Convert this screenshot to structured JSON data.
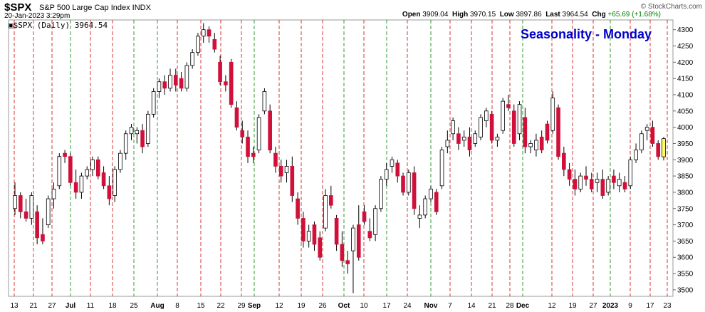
{
  "header": {
    "symbol": "$SPX",
    "name": "S&P 500 Large Cap Index  INDX",
    "datetime": "20-Jan-2023 3:29pm",
    "open_label": "Open",
    "open": "3909.04",
    "high_label": "High",
    "high": "3970.15",
    "low_label": "Low",
    "low": "3897.86",
    "last_label": "Last",
    "last": "3964.54",
    "chg_label": "Chg",
    "chg": "+65.69 (+1.68%)",
    "brand": "© StockCharts.com"
  },
  "legend": "$SPX (Daily) 3964.54",
  "annotation": "Seasonality - Monday",
  "colors": {
    "up_fill": "#ffffff",
    "down_fill": "#d0103a",
    "outline": "#000000",
    "last_bar": "#ffff66",
    "red_line": "#d00000",
    "green_line": "#008000"
  },
  "chart_data": {
    "type": "candlestick",
    "y_axis": {
      "range": [
        3480,
        4330
      ],
      "ticks": [
        3500,
        3550,
        3600,
        3650,
        3700,
        3750,
        3800,
        3850,
        3900,
        3950,
        4000,
        4050,
        4100,
        4150,
        4200,
        4250,
        4300
      ],
      "position": "right"
    },
    "x_tick_labels": [
      {
        "label": "13",
        "bold": false
      },
      {
        "label": "21",
        "bold": false
      },
      {
        "label": "27",
        "bold": false
      },
      {
        "label": "Jul",
        "bold": true
      },
      {
        "label": "11",
        "bold": false
      },
      {
        "label": "18",
        "bold": false
      },
      {
        "label": "25",
        "bold": false
      },
      {
        "label": "Aug",
        "bold": true
      },
      {
        "label": "8",
        "bold": false
      },
      {
        "label": "15",
        "bold": false
      },
      {
        "label": "22",
        "bold": false
      },
      {
        "label": "29",
        "bold": false
      },
      {
        "label": "Sep",
        "bold": true
      },
      {
        "label": "12",
        "bold": false
      },
      {
        "label": "19",
        "bold": false
      },
      {
        "label": "26",
        "bold": false
      },
      {
        "label": "Oct",
        "bold": true
      },
      {
        "label": "10",
        "bold": false
      },
      {
        "label": "17",
        "bold": false
      },
      {
        "label": "24",
        "bold": false
      },
      {
        "label": "Nov",
        "bold": true
      },
      {
        "label": "7",
        "bold": false
      },
      {
        "label": "14",
        "bold": false
      },
      {
        "label": "21",
        "bold": false
      },
      {
        "label": "28",
        "bold": false
      },
      {
        "label": "Dec",
        "bold": true
      },
      {
        "label": "12",
        "bold": false
      },
      {
        "label": "19",
        "bold": false
      },
      {
        "label": "27",
        "bold": false
      },
      {
        "label": "2023",
        "bold": true
      },
      {
        "label": "9",
        "bold": false
      },
      {
        "label": "17",
        "bold": false
      },
      {
        "label": "23",
        "bold": false
      }
    ],
    "vertical_lines": {
      "red_dashed": "Monday of each week",
      "green_dashed": "first trading day of month"
    },
    "candles": [
      [
        3750,
        3830,
        3730,
        3790
      ],
      [
        3790,
        3800,
        3720,
        3740
      ],
      [
        3740,
        3780,
        3710,
        3720
      ],
      [
        3720,
        3800,
        3700,
        3790
      ],
      [
        3740,
        3760,
        3640,
        3660
      ],
      [
        3670,
        3720,
        3640,
        3650
      ],
      [
        3700,
        3790,
        3690,
        3780
      ],
      [
        3780,
        3830,
        3750,
        3810
      ],
      [
        3820,
        3920,
        3810,
        3910
      ],
      [
        3920,
        3930,
        3890,
        3910
      ],
      [
        3910,
        3920,
        3820,
        3830
      ],
      [
        3830,
        3870,
        3780,
        3800
      ],
      [
        3800,
        3860,
        3780,
        3850
      ],
      [
        3850,
        3880,
        3840,
        3870
      ],
      [
        3870,
        3910,
        3850,
        3900
      ],
      [
        3900,
        3910,
        3840,
        3850
      ],
      [
        3860,
        3880,
        3810,
        3820
      ],
      [
        3820,
        3850,
        3760,
        3780
      ],
      [
        3790,
        3880,
        3770,
        3870
      ],
      [
        3870,
        3930,
        3860,
        3920
      ],
      [
        3920,
        3990,
        3900,
        3980
      ],
      [
        3980,
        4010,
        3960,
        4000
      ],
      [
        3980,
        4000,
        3950,
        3990
      ],
      [
        3990,
        4010,
        3920,
        3940
      ],
      [
        3950,
        4050,
        3940,
        4040
      ],
      [
        4040,
        4120,
        4030,
        4110
      ],
      [
        4110,
        4150,
        4090,
        4140
      ],
      [
        4140,
        4160,
        4100,
        4120
      ],
      [
        4120,
        4180,
        4110,
        4160
      ],
      [
        4160,
        4180,
        4110,
        4130
      ],
      [
        4150,
        4170,
        4110,
        4120
      ],
      [
        4120,
        4200,
        4110,
        4190
      ],
      [
        4190,
        4240,
        4180,
        4230
      ],
      [
        4230,
        4290,
        4220,
        4280
      ],
      [
        4280,
        4320,
        4260,
        4300
      ],
      [
        4300,
        4310,
        4260,
        4280
      ],
      [
        4270,
        4290,
        4230,
        4240
      ],
      [
        4200,
        4220,
        4130,
        4140
      ],
      [
        4140,
        4160,
        4110,
        4130
      ],
      [
        4200,
        4210,
        4060,
        4070
      ],
      [
        4060,
        4080,
        3990,
        4000
      ],
      [
        3990,
        4020,
        3950,
        3970
      ],
      [
        3970,
        3990,
        3890,
        3910
      ],
      [
        3920,
        3940,
        3890,
        3910
      ],
      [
        3930,
        4040,
        3920,
        4030
      ],
      [
        4050,
        4120,
        4040,
        4110
      ],
      [
        4050,
        4070,
        3920,
        3930
      ],
      [
        3920,
        3940,
        3860,
        3880
      ],
      [
        3880,
        3900,
        3830,
        3850
      ],
      [
        3860,
        3900,
        3830,
        3880
      ],
      [
        3880,
        3910,
        3770,
        3790
      ],
      [
        3780,
        3800,
        3700,
        3720
      ],
      [
        3720,
        3740,
        3630,
        3650
      ],
      [
        3650,
        3700,
        3630,
        3680
      ],
      [
        3700,
        3710,
        3620,
        3640
      ],
      [
        3660,
        3680,
        3590,
        3600
      ],
      [
        3690,
        3810,
        3680,
        3790
      ],
      [
        3790,
        3820,
        3750,
        3760
      ],
      [
        3720,
        3730,
        3620,
        3640
      ],
      [
        3640,
        3680,
        3570,
        3590
      ],
      [
        3590,
        3620,
        3550,
        3580
      ],
      [
        3620,
        3700,
        3490,
        3690
      ],
      [
        3700,
        3760,
        3590,
        3600
      ],
      [
        3740,
        3760,
        3700,
        3710
      ],
      [
        3680,
        3720,
        3650,
        3660
      ],
      [
        3670,
        3760,
        3650,
        3750
      ],
      [
        3750,
        3850,
        3740,
        3840
      ],
      [
        3840,
        3890,
        3820,
        3870
      ],
      [
        3880,
        3910,
        3860,
        3900
      ],
      [
        3890,
        3900,
        3830,
        3850
      ],
      [
        3850,
        3860,
        3790,
        3800
      ],
      [
        3800,
        3870,
        3790,
        3860
      ],
      [
        3860,
        3880,
        3730,
        3750
      ],
      [
        3720,
        3760,
        3690,
        3730
      ],
      [
        3730,
        3790,
        3720,
        3780
      ],
      [
        3780,
        3820,
        3770,
        3810
      ],
      [
        3800,
        3810,
        3730,
        3740
      ],
      [
        3820,
        3940,
        3810,
        3930
      ],
      [
        3940,
        3990,
        3920,
        3960
      ],
      [
        3980,
        4030,
        3960,
        4020
      ],
      [
        3980,
        4000,
        3930,
        3950
      ],
      [
        3960,
        3990,
        3940,
        3970
      ],
      [
        3970,
        4000,
        3910,
        3930
      ],
      [
        3950,
        3990,
        3940,
        3980
      ],
      [
        3970,
        4040,
        3960,
        4030
      ],
      [
        4020,
        4060,
        4000,
        4050
      ],
      [
        4040,
        4050,
        3950,
        3960
      ],
      [
        3960,
        3980,
        3940,
        3970
      ],
      [
        3990,
        4090,
        3980,
        4080
      ],
      [
        4070,
        4100,
        4050,
        4060
      ],
      [
        4050,
        4070,
        3940,
        3950
      ],
      [
        3980,
        4080,
        3960,
        4070
      ],
      [
        4030,
        4060,
        3920,
        3940
      ],
      [
        3940,
        3960,
        3920,
        3950
      ],
      [
        3930,
        3980,
        3910,
        3960
      ],
      [
        3970,
        3990,
        3920,
        3930
      ],
      [
        4010,
        4020,
        3950,
        3960
      ],
      [
        3990,
        4110,
        3980,
        4090
      ],
      [
        4060,
        4070,
        3900,
        3910
      ],
      [
        3920,
        3940,
        3850,
        3870
      ],
      [
        3870,
        3890,
        3820,
        3840
      ],
      [
        3840,
        3870,
        3790,
        3810
      ],
      [
        3810,
        3860,
        3800,
        3850
      ],
      [
        3850,
        3880,
        3820,
        3840
      ],
      [
        3840,
        3860,
        3800,
        3810
      ],
      [
        3830,
        3860,
        3800,
        3840
      ],
      [
        3840,
        3870,
        3780,
        3790
      ],
      [
        3800,
        3850,
        3790,
        3840
      ],
      [
        3850,
        3870,
        3810,
        3830
      ],
      [
        3820,
        3860,
        3800,
        3840
      ],
      [
        3830,
        3850,
        3800,
        3810
      ],
      [
        3820,
        3910,
        3810,
        3900
      ],
      [
        3900,
        3950,
        3890,
        3930
      ],
      [
        3930,
        3990,
        3920,
        3980
      ],
      [
        3990,
        4010,
        3960,
        4000
      ],
      [
        4000,
        4020,
        3940,
        3950
      ],
      [
        3950,
        3960,
        3900,
        3910
      ],
      [
        3909,
        3970,
        3898,
        3965
      ]
    ]
  }
}
